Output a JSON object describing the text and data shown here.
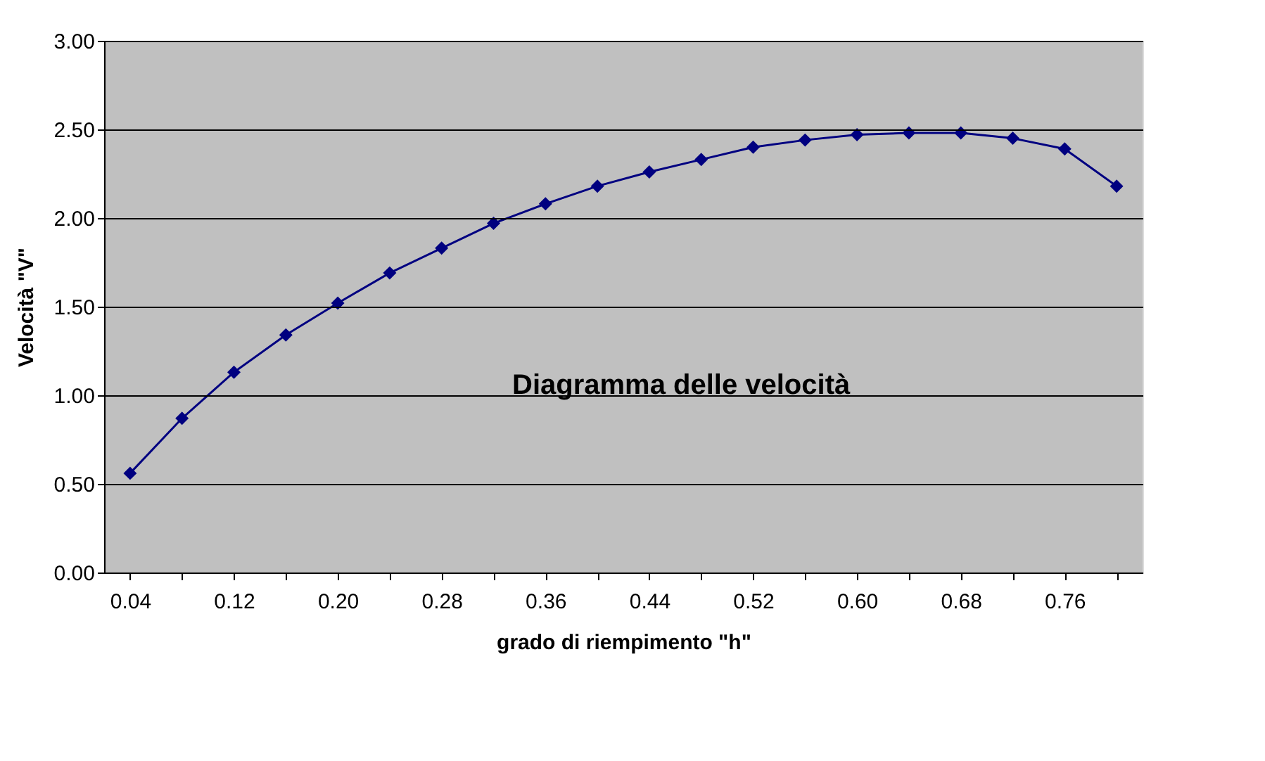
{
  "chart_data": {
    "type": "line",
    "xlabel": "grado di riempimento \"h\"",
    "ylabel": "Velocità \"V\"",
    "categories": [
      "0.04",
      null,
      "0.12",
      null,
      "0.20",
      null,
      "0.28",
      null,
      "0.36",
      null,
      "0.44",
      null,
      "0.52",
      null,
      "0.60",
      null,
      "0.68",
      null,
      "0.76",
      null
    ],
    "series": [
      {
        "color": "#000080",
        "values": [
          0.56,
          0.87,
          1.13,
          1.34,
          1.52,
          1.69,
          1.83,
          1.97,
          2.08,
          2.18,
          2.26,
          2.33,
          2.4,
          2.44,
          2.47,
          2.48,
          2.48,
          2.45,
          2.39,
          2.18
        ]
      }
    ],
    "ylim": [
      0,
      3
    ],
    "yticks": [
      {
        "value": 0,
        "label": "0.00"
      },
      {
        "value": 0.5,
        "label": "0.50"
      },
      {
        "value": 1,
        "label": "1.00"
      },
      {
        "value": 1.5,
        "label": "1.50"
      },
      {
        "value": 2,
        "label": "2.00"
      },
      {
        "value": 2.5,
        "label": "2.50"
      },
      {
        "value": 3,
        "label": "3.00"
      }
    ],
    "grid": "y",
    "marker": "diamond",
    "line_style": "solid",
    "annotations": [
      "Diagramma delle velocità"
    ]
  }
}
